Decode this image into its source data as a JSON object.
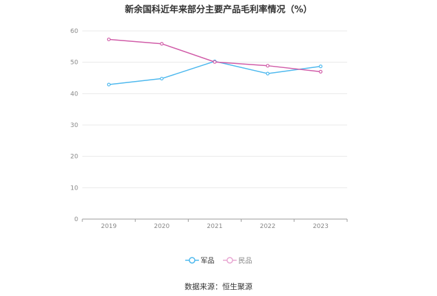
{
  "chart_data": {
    "type": "line",
    "title": "新余国科近年来部分主要产品毛利率情况（%）",
    "x": [
      "2019",
      "2020",
      "2021",
      "2022",
      "2023"
    ],
    "yticks": [
      "0",
      "10",
      "20",
      "30",
      "40",
      "50",
      "60"
    ],
    "ylim": [
      0,
      60
    ],
    "grid": true,
    "legend_position": "bottom-center",
    "series": [
      {
        "name": "军品",
        "color": "#4cb8ee",
        "values": [
          42.9,
          44.8,
          50.3,
          46.4,
          48.7
        ]
      },
      {
        "name": "民品",
        "color": "#d05aa7",
        "values": [
          57.3,
          55.9,
          50.1,
          48.9,
          47.0
        ]
      }
    ],
    "source": "数据来源：恒生聚源"
  }
}
